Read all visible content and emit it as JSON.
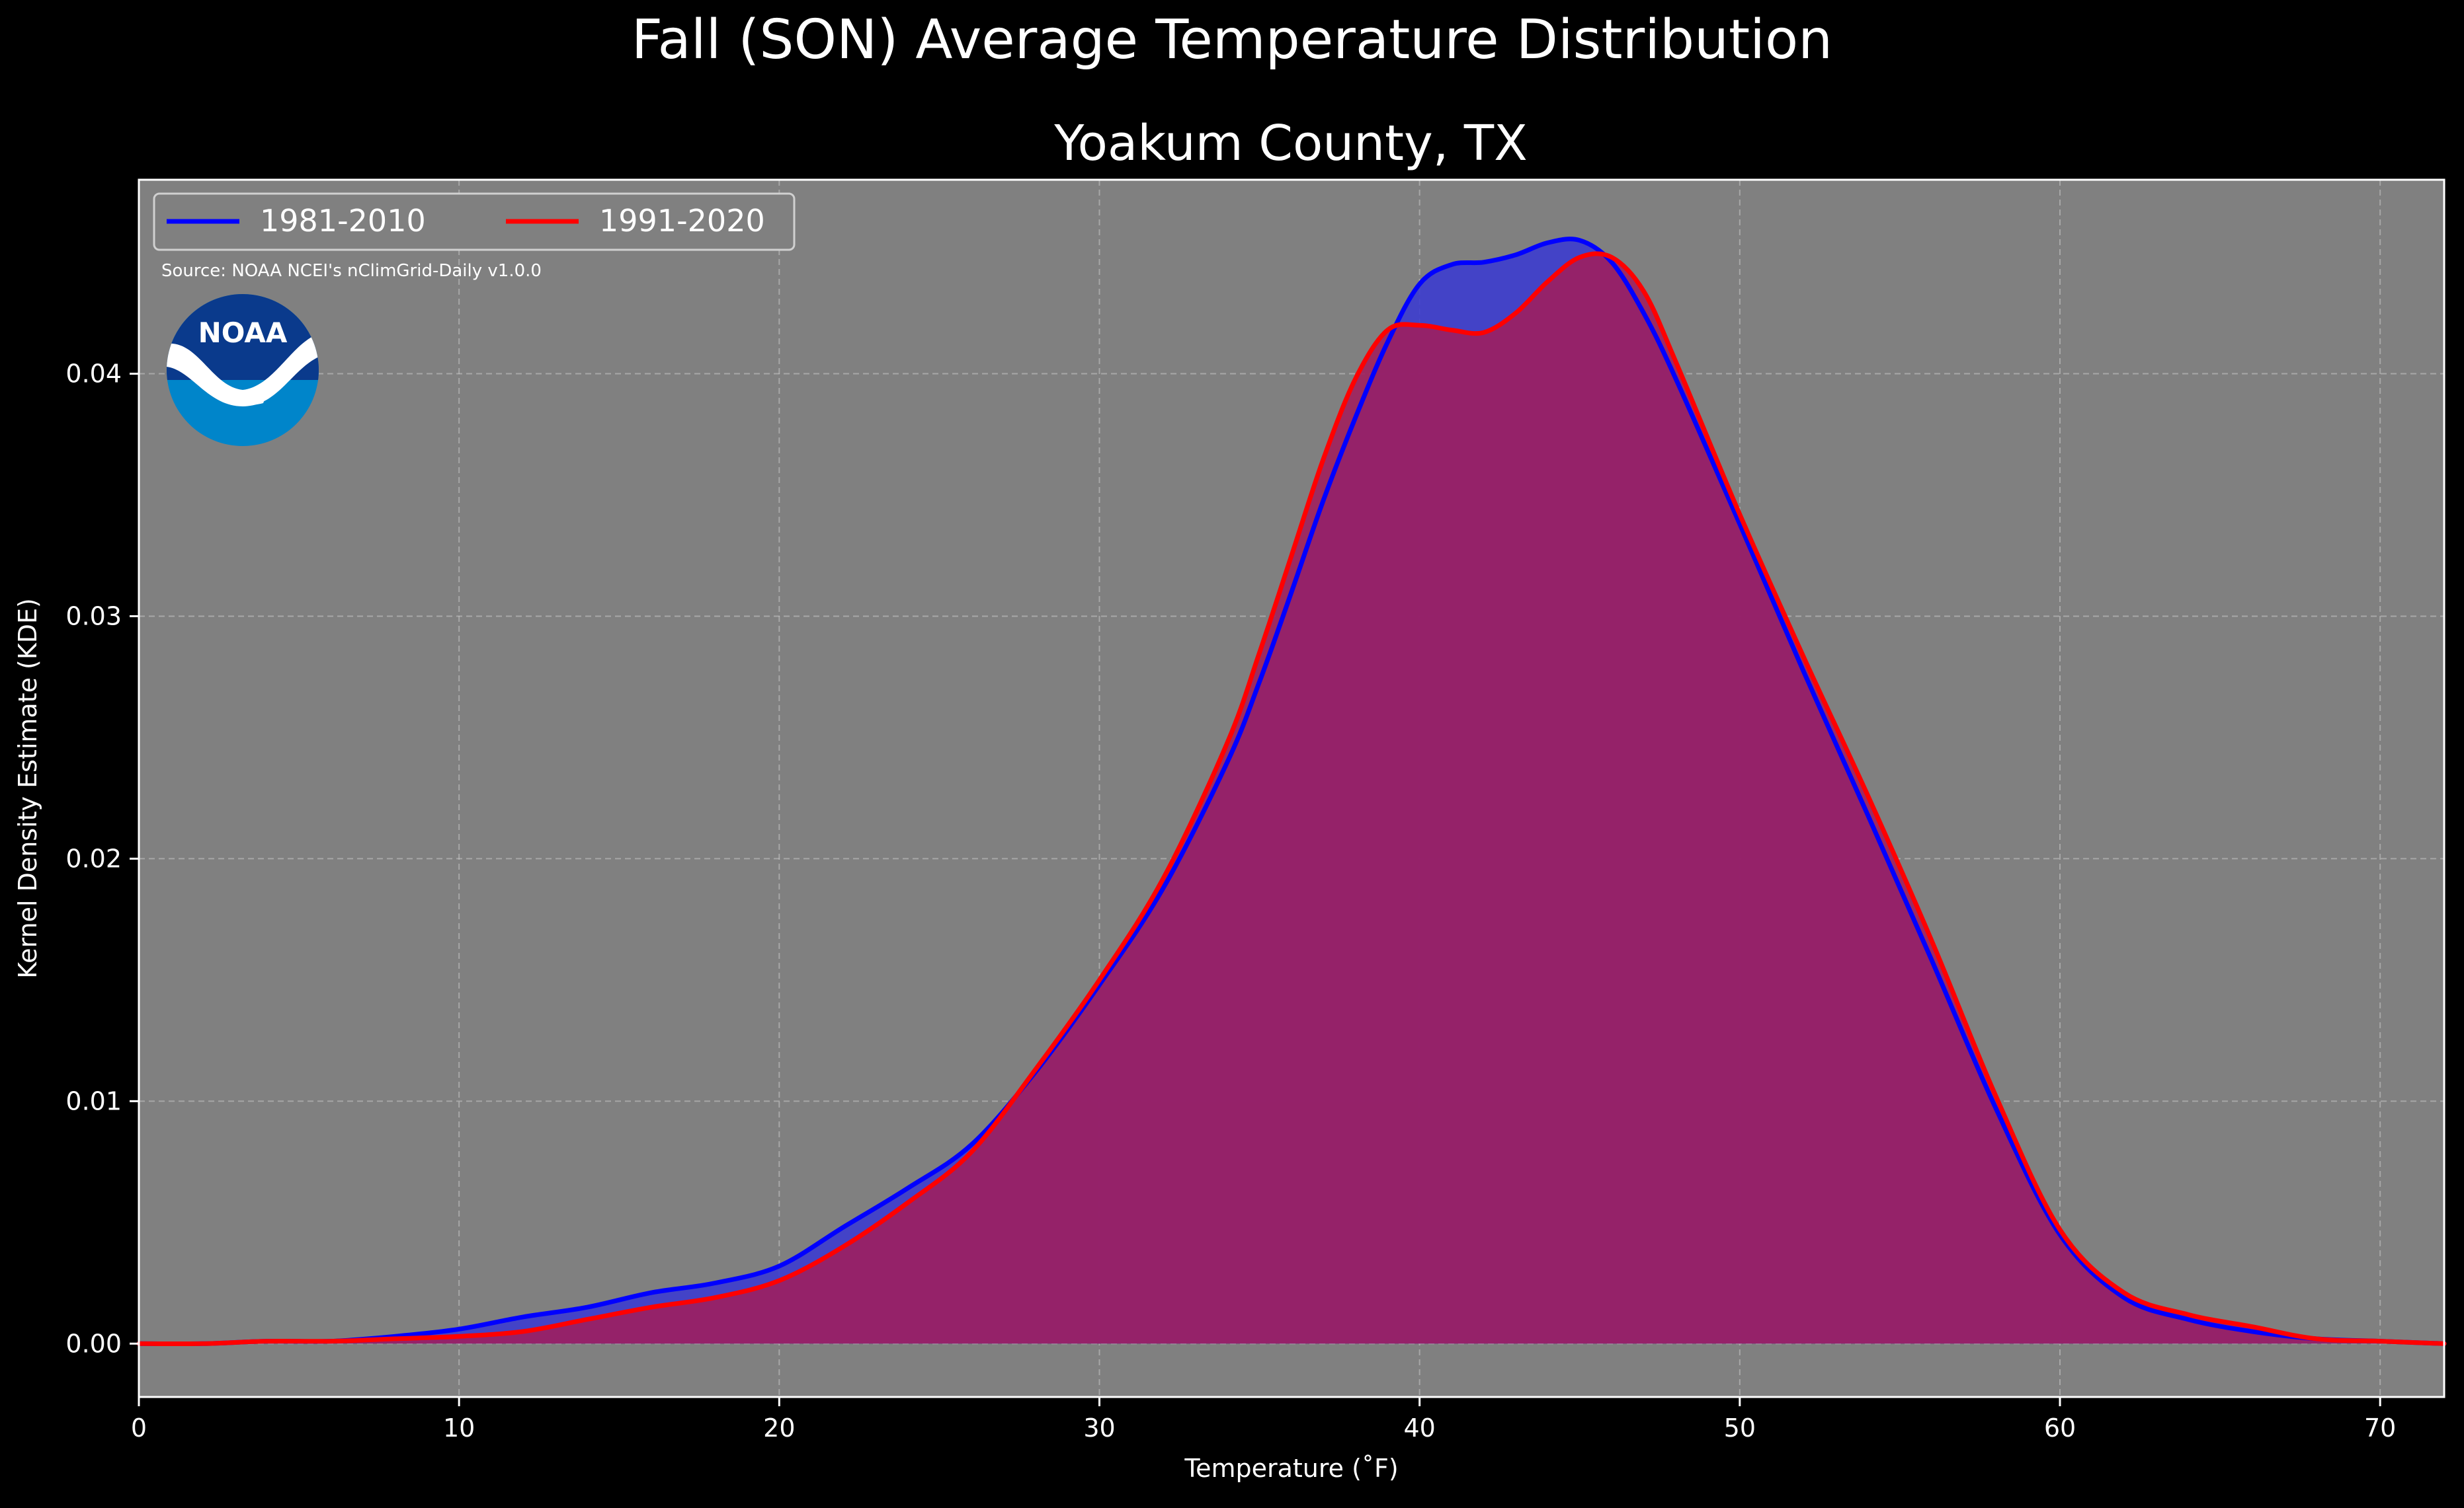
{
  "suptitle": "Fall (SON) Average Temperature Distribution",
  "source_note": "Source: NOAA NCEI's nClimGrid-Daily v1.0.0",
  "logo_text": "NOAA",
  "colors": {
    "figure_bg": "#000000",
    "axes_bg": "#808080",
    "text": "#ffffff",
    "grid": "#c8c8c8",
    "noaa_dark_blue": "#0a3a8c",
    "noaa_light_blue": "#0085ca"
  },
  "chart_data": {
    "type": "area",
    "title": "Yoakum County, TX",
    "xlabel": "Temperature (˚F)",
    "ylabel": "Kernel Density Estimate (KDE)",
    "xlim": [
      0,
      72
    ],
    "ylim": [
      -0.0022,
      0.048
    ],
    "xticks": [
      0,
      10,
      20,
      30,
      40,
      50,
      60,
      70
    ],
    "yticks": [
      0.0,
      0.01,
      0.02,
      0.03,
      0.04
    ],
    "xtick_labels": [
      "0",
      "10",
      "20",
      "30",
      "40",
      "50",
      "60",
      "70"
    ],
    "ytick_labels": [
      "0.00",
      "0.01",
      "0.02",
      "0.03",
      "0.04"
    ],
    "grid": true,
    "legend_position": "upper-left",
    "series": [
      {
        "name": "1981-2010",
        "line_color": "#0000ff",
        "fill_color": "#3a3ad0",
        "points": [
          [
            0,
            0.0
          ],
          [
            2,
            0.0
          ],
          [
            4,
            0.0001
          ],
          [
            6,
            0.0001
          ],
          [
            8,
            0.0003
          ],
          [
            10,
            0.0006
          ],
          [
            12,
            0.0011
          ],
          [
            14,
            0.0015
          ],
          [
            16,
            0.0021
          ],
          [
            18,
            0.0025
          ],
          [
            20,
            0.0032
          ],
          [
            22,
            0.0048
          ],
          [
            24,
            0.0064
          ],
          [
            26,
            0.0082
          ],
          [
            28,
            0.0112
          ],
          [
            30,
            0.0148
          ],
          [
            32,
            0.0188
          ],
          [
            34,
            0.024
          ],
          [
            35,
            0.0273
          ],
          [
            36,
            0.031
          ],
          [
            37,
            0.0348
          ],
          [
            38,
            0.0382
          ],
          [
            39,
            0.0413
          ],
          [
            40,
            0.0437
          ],
          [
            41,
            0.0445
          ],
          [
            42,
            0.0446
          ],
          [
            43,
            0.0449
          ],
          [
            44,
            0.0454
          ],
          [
            45,
            0.0455
          ],
          [
            46,
            0.0446
          ],
          [
            47,
            0.0425
          ],
          [
            48,
            0.0398
          ],
          [
            50,
            0.0338
          ],
          [
            52,
            0.0277
          ],
          [
            54,
            0.0218
          ],
          [
            56,
            0.0158
          ],
          [
            58,
            0.0097
          ],
          [
            60,
            0.0045
          ],
          [
            62,
            0.0019
          ],
          [
            64,
            0.001
          ],
          [
            66,
            0.0005
          ],
          [
            68,
            0.0002
          ],
          [
            70,
            0.0001
          ],
          [
            72,
            0.0
          ]
        ]
      },
      {
        "name": "1991-2020",
        "line_color": "#ff0000",
        "fill_color": "#a01e5c",
        "points": [
          [
            0,
            0.0
          ],
          [
            2,
            0.0
          ],
          [
            4,
            0.0001
          ],
          [
            6,
            0.0001
          ],
          [
            8,
            0.0002
          ],
          [
            10,
            0.0003
          ],
          [
            12,
            0.0005
          ],
          [
            14,
            0.001
          ],
          [
            16,
            0.0015
          ],
          [
            18,
            0.0019
          ],
          [
            20,
            0.0026
          ],
          [
            22,
            0.004
          ],
          [
            24,
            0.0058
          ],
          [
            26,
            0.0079
          ],
          [
            28,
            0.0113
          ],
          [
            30,
            0.015
          ],
          [
            32,
            0.0192
          ],
          [
            34,
            0.0248
          ],
          [
            35,
            0.0285
          ],
          [
            36,
            0.0325
          ],
          [
            37,
            0.0365
          ],
          [
            38,
            0.0398
          ],
          [
            39,
            0.0418
          ],
          [
            40,
            0.042
          ],
          [
            41,
            0.0418
          ],
          [
            42,
            0.0417
          ],
          [
            43,
            0.0425
          ],
          [
            44,
            0.0438
          ],
          [
            45,
            0.0448
          ],
          [
            46,
            0.0448
          ],
          [
            47,
            0.0434
          ],
          [
            48,
            0.0405
          ],
          [
            50,
            0.0342
          ],
          [
            52,
            0.0283
          ],
          [
            54,
            0.0226
          ],
          [
            56,
            0.0166
          ],
          [
            58,
            0.0102
          ],
          [
            60,
            0.0047
          ],
          [
            62,
            0.0021
          ],
          [
            64,
            0.0012
          ],
          [
            66,
            0.0007
          ],
          [
            68,
            0.0002
          ],
          [
            70,
            0.0001
          ],
          [
            72,
            0.0
          ]
        ]
      }
    ]
  }
}
